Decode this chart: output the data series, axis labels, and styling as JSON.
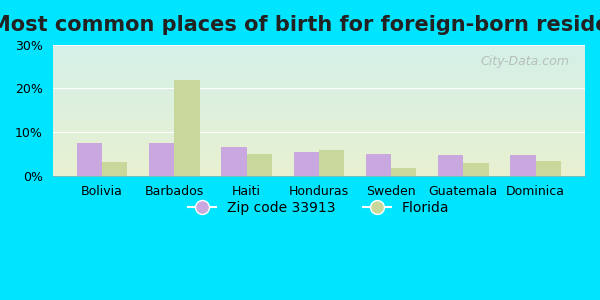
{
  "title": "Most common places of birth for foreign-born residents",
  "categories": [
    "Bolivia",
    "Barbados",
    "Haiti",
    "Honduras",
    "Sweden",
    "Guatemala",
    "Dominica"
  ],
  "zip_values": [
    7.5,
    7.5,
    6.5,
    5.5,
    5.0,
    4.8,
    4.7
  ],
  "florida_values": [
    3.0,
    22.0,
    5.0,
    5.8,
    1.8,
    2.8,
    3.3
  ],
  "zip_color": "#c9a8e0",
  "florida_color": "#c8d89a",
  "ylim": [
    0,
    30
  ],
  "yticks": [
    0,
    10,
    20,
    30
  ],
  "ytick_labels": [
    "0%",
    "10%",
    "20%",
    "30%"
  ],
  "legend_zip_label": "Zip code 33913",
  "legend_florida_label": "Florida",
  "bg_color_top": "#d4f0e8",
  "bg_color_bottom": "#e8f0d0",
  "outer_bg": "#00e5ff",
  "watermark": "City-Data.com",
  "title_fontsize": 15,
  "axis_label_fontsize": 9,
  "legend_fontsize": 10
}
